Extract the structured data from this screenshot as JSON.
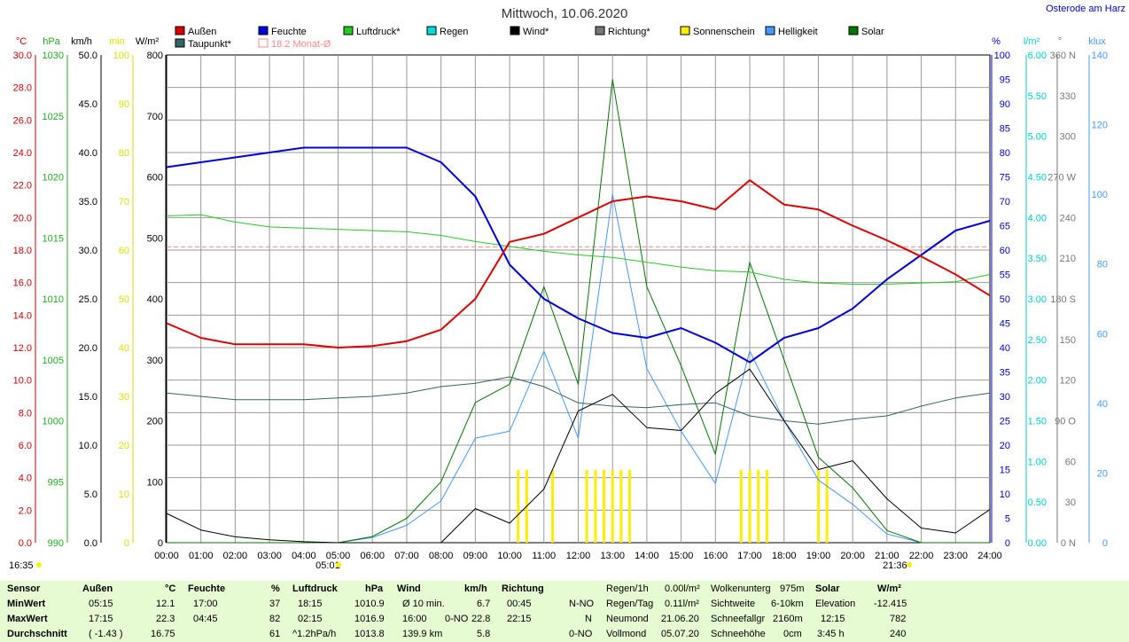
{
  "title": "Mittwoch, 10.06.2020",
  "location_link": "Osterode am Harz",
  "colors": {
    "aussen": "#dd0000",
    "feuchte": "#0000dd",
    "luftdruck": "#22cc22",
    "regen": "#00cccc",
    "wind": "#000000",
    "richtung": "#777777",
    "sonnenschein": "#ffee00",
    "helligkeit": "#4499ff",
    "solar": "#007700",
    "taupunkt": "#336666",
    "monat": "#ff8888"
  },
  "legend": [
    {
      "label": "Außen",
      "color": "#dd0000"
    },
    {
      "label": "Feuchte",
      "color": "#0000dd"
    },
    {
      "label": "Luftdruck*",
      "color": "#22cc22"
    },
    {
      "label": "Regen",
      "color": "#00dddd"
    },
    {
      "label": "Wind*",
      "color": "#000000"
    },
    {
      "label": "Richtung*",
      "color": "#777777"
    },
    {
      "label": "Sonnenschein",
      "color": "#ffee00"
    },
    {
      "label": "Helligkeit",
      "color": "#4499ff"
    },
    {
      "label": "Solar",
      "color": "#007700"
    },
    {
      "label": "Taupunkt*",
      "color": "#336666"
    },
    {
      "label": "18.2 Monat-Ø",
      "color": "#ff8888",
      "hollow": true
    }
  ],
  "axes": {
    "celsius": {
      "unit": "°C",
      "ticks": [
        "30.0",
        "28.0",
        "26.0",
        "24.0",
        "22.0",
        "20.0",
        "18.0",
        "16.0",
        "14.0",
        "12.0",
        "10.0",
        "8.0",
        "6.0",
        "4.0",
        "2.0",
        "0.0"
      ]
    },
    "hpa": {
      "unit": "hPa",
      "ticks": [
        "1030",
        "1025",
        "1020",
        "1015",
        "1010",
        "1005",
        "1000",
        "995",
        "990"
      ]
    },
    "kmh": {
      "unit": "km/h",
      "ticks": [
        "50.0",
        "45.0",
        "40.0",
        "35.0",
        "30.0",
        "25.0",
        "20.0",
        "15.0",
        "10.0",
        "5.0",
        "0.0"
      ]
    },
    "min": {
      "unit": "min",
      "ticks": [
        "100",
        "90",
        "80",
        "70",
        "60",
        "50",
        "40",
        "30",
        "20",
        "10",
        "0"
      ]
    },
    "wm2": {
      "unit": "W/m²",
      "ticks": [
        "800",
        "700",
        "600",
        "500",
        "400",
        "300",
        "200",
        "100",
        "0"
      ]
    },
    "percent": {
      "unit": "%",
      "ticks": [
        "100",
        "95",
        "90",
        "85",
        "80",
        "75",
        "70",
        "65",
        "60",
        "55",
        "50",
        "45",
        "40",
        "35",
        "30",
        "25",
        "20",
        "15",
        "10",
        "5",
        "0"
      ]
    },
    "lm2": {
      "unit": "l/m²",
      "ticks": [
        "6.00",
        "5.50",
        "5.00",
        "4.50",
        "4.00",
        "3.50",
        "3.00",
        "2.50",
        "2.00",
        "1.50",
        "1.00",
        "0.50",
        "0.00"
      ]
    },
    "deg": {
      "unit": "°",
      "ticks": [
        "360 N",
        "330",
        "300",
        "270 W",
        "240",
        "210",
        "180 S",
        "150",
        "120",
        "90 O",
        "60",
        "30",
        "0 N"
      ]
    },
    "klux": {
      "unit": "klux",
      "ticks": [
        "140",
        "120",
        "100",
        "80",
        "60",
        "40",
        "20",
        "0"
      ]
    },
    "x_ticks": [
      "00:00",
      "01:00",
      "02:00",
      "03:00",
      "04:00",
      "05:00",
      "06:00",
      "07:00",
      "08:00",
      "09:00",
      "10:00",
      "11:00",
      "12:00",
      "13:00",
      "14:00",
      "15:00",
      "16:00",
      "17:00",
      "18:00",
      "19:00",
      "20:00",
      "21:00",
      "22:00",
      "23:00",
      "24:00"
    ]
  },
  "sun": {
    "left_time": "16:35",
    "sunrise": "05:01",
    "sunset": "21:36"
  },
  "chart_data": {
    "type": "line",
    "x": [
      "00:00",
      "01:00",
      "02:00",
      "03:00",
      "04:00",
      "05:00",
      "06:00",
      "07:00",
      "08:00",
      "09:00",
      "10:00",
      "11:00",
      "12:00",
      "13:00",
      "14:00",
      "15:00",
      "16:00",
      "17:00",
      "18:00",
      "19:00",
      "20:00",
      "21:00",
      "22:00",
      "23:00",
      "24:00"
    ],
    "series": [
      {
        "name": "Außen",
        "unit": "°C",
        "values": [
          13.5,
          12.6,
          12.2,
          12.2,
          12.2,
          12.0,
          12.1,
          12.4,
          13.1,
          15.0,
          18.5,
          19.0,
          20.0,
          21.0,
          21.3,
          21.0,
          20.5,
          22.3,
          20.8,
          20.5,
          19.5,
          18.6,
          17.6,
          16.5,
          15.2
        ]
      },
      {
        "name": "Feuchte",
        "unit": "%",
        "values": [
          77,
          78,
          79,
          80,
          81,
          81,
          81,
          81,
          78,
          71,
          57,
          50,
          46,
          43,
          42,
          44,
          41,
          37,
          42,
          44,
          48,
          54,
          59,
          64,
          66
        ]
      },
      {
        "name": "Luftdruck*",
        "unit": "hPa",
        "values": [
          1016.8,
          1016.9,
          1016.3,
          1015.9,
          1015.8,
          1015.7,
          1015.6,
          1015.5,
          1015.2,
          1014.7,
          1014.3,
          1013.9,
          1013.6,
          1013.4,
          1013.0,
          1012.6,
          1012.3,
          1012.2,
          1011.6,
          1011.3,
          1011.2,
          1011.2,
          1011.3,
          1011.4,
          1012.0
        ]
      },
      {
        "name": "Taupunkt*",
        "unit": "°C",
        "values": [
          9.2,
          9.0,
          8.8,
          8.8,
          8.8,
          8.9,
          9.0,
          9.2,
          9.6,
          9.8,
          10.2,
          9.6,
          8.6,
          8.4,
          8.3,
          8.5,
          8.6,
          7.8,
          7.5,
          7.3,
          7.6,
          7.8,
          8.4,
          8.9,
          9.2
        ]
      },
      {
        "name": "Wind*",
        "unit": "km/h",
        "values": [
          3.0,
          1.3,
          0.6,
          0.3,
          0.1,
          0.0,
          0.0,
          0.0,
          0.0,
          3.5,
          2.0,
          5.5,
          13.5,
          15.2,
          11.8,
          11.5,
          15.3,
          17.8,
          12.5,
          7.5,
          8.4,
          4.5,
          1.5,
          1.0,
          3.4
        ]
      },
      {
        "name": "Solar",
        "unit": "W/m²",
        "values": [
          0,
          0,
          0,
          0,
          0,
          0,
          10,
          40,
          100,
          230,
          260,
          420,
          260,
          760,
          420,
          290,
          145,
          460,
          300,
          140,
          90,
          20,
          0,
          0,
          0
        ]
      },
      {
        "name": "Helligkeit",
        "unit": "klux",
        "values": [
          0,
          0,
          0,
          0,
          0,
          0,
          1.5,
          5,
          12,
          30,
          32,
          55,
          30,
          100,
          50,
          32,
          17,
          55,
          35,
          18,
          11,
          2.5,
          0,
          0,
          0
        ]
      }
    ],
    "sonnenschein_bars": [
      "10:15",
      "10:30",
      "11:15",
      "12:15",
      "12:30",
      "12:45",
      "13:00",
      "13:15",
      "13:30",
      "16:45",
      "17:00",
      "17:15",
      "17:30",
      "19:00",
      "19:15"
    ],
    "monat_avg": 18.2,
    "xlim": [
      "00:00",
      "24:00"
    ]
  },
  "table": {
    "headers": {
      "sensor": "Sensor",
      "aussen": "Außen",
      "aussen_unit": "°C",
      "feuchte": "Feuchte",
      "feuchte_unit": "%",
      "luftdruck": "Luftdruck",
      "luftdruck_unit": "hPa",
      "wind": "Wind",
      "wind_unit": "km/h",
      "richtung": "Richtung",
      "solar": "Solar",
      "solar_unit": "W/m²"
    },
    "rows": {
      "min": {
        "label": "MinWert",
        "aussen_t": "05:15",
        "aussen_v": "12.1",
        "feuchte_t": "17:00",
        "feuchte_v": "37",
        "luft_t": "18:15",
        "luft_v": "1010.9",
        "wind_t": "Ø 10 min.",
        "wind_v": "6.7",
        "richt_t": "00:45",
        "richt_v": "N-NO"
      },
      "max": {
        "label": "MaxWert",
        "aussen_t": "17:15",
        "aussen_v": "22.3",
        "feuchte_t": "04:45",
        "feuchte_v": "82",
        "luft_t": "02:15",
        "luft_v": "1016.9",
        "wind_t": "16:00",
        "wind_m": "0-NO",
        "wind_v": "22.8",
        "richt_t": "22:15",
        "richt_v": "N"
      },
      "avg": {
        "label": "Durchschnitt",
        "aussen_t": "( -1.43 )",
        "aussen_v": "16.75",
        "feuchte_v": "61",
        "luft_t": "^1.2hPa/h",
        "luft_v": "1013.8",
        "wind_t": "139.9 km",
        "wind_v": "5.8",
        "richt_v": "0-NO"
      }
    },
    "regen": [
      {
        "label": "Regen/1h",
        "value": "0.00l/m²"
      },
      {
        "label": "Regen/Tag",
        "value": "0.11l/m²"
      },
      {
        "label": "Neumond",
        "value": "21.06.20"
      },
      {
        "label": "Vollmond",
        "value": "05.07.20"
      }
    ],
    "wolken": [
      {
        "label": "Wolkenunterg",
        "value": "975m"
      },
      {
        "label": "Sichtweite",
        "value": "6-10km"
      },
      {
        "label": "Schneefallgr",
        "value": "2160m"
      },
      {
        "label": "Schneehöhe",
        "value": "0cm"
      }
    ],
    "solar": [
      {
        "label": "Elevation",
        "value": "-12.415"
      },
      {
        "label": "12:15",
        "value": "782"
      },
      {
        "label": "3:45 h",
        "value": "240"
      }
    ]
  }
}
